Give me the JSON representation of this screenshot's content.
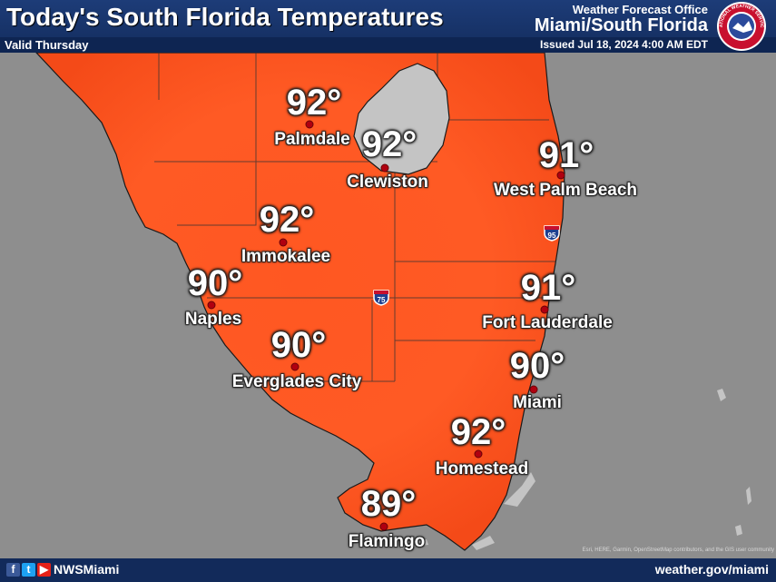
{
  "header": {
    "title": "Today's South Florida Temperatures",
    "valid": "Valid Thursday",
    "office_line": "Weather Forecast Office",
    "office_name": "Miami/South Florida",
    "issued": "Issued Jul 18, 2024 4:00 AM EDT",
    "logo_text": "NATIONAL WEATHER SERVICE"
  },
  "cities": [
    {
      "name": "Palmdale",
      "temp": "92°"
    },
    {
      "name": "Clewiston",
      "temp": "92°"
    },
    {
      "name": "West Palm Beach",
      "temp": "91°"
    },
    {
      "name": "Immokalee",
      "temp": "92°"
    },
    {
      "name": "Naples",
      "temp": "90°"
    },
    {
      "name": "Fort Lauderdale",
      "temp": "91°"
    },
    {
      "name": "Everglades City",
      "temp": "90°"
    },
    {
      "name": "Miami",
      "temp": "90°"
    },
    {
      "name": "Homestead",
      "temp": "92°"
    },
    {
      "name": "Flamingo",
      "temp": "89°"
    }
  ],
  "highways": [
    {
      "label": "95",
      "icon": "interstate-shield-icon"
    },
    {
      "label": "75",
      "icon": "interstate-shield-icon"
    }
  ],
  "footer": {
    "social_icons": [
      "facebook-icon",
      "twitter-icon",
      "youtube-icon"
    ],
    "handle": "NWSMiami",
    "website": "weather.gov/miami",
    "attribution": "Esri, HERE, Garmin, OpenStreetMap contributors, and the GIS user community"
  },
  "colors": {
    "land_fill": "#ff5a20",
    "water": "#8e8e8e",
    "lake": "#c4c4c4",
    "header_bg": "#1d3c78",
    "city_dot": "#b00010"
  }
}
